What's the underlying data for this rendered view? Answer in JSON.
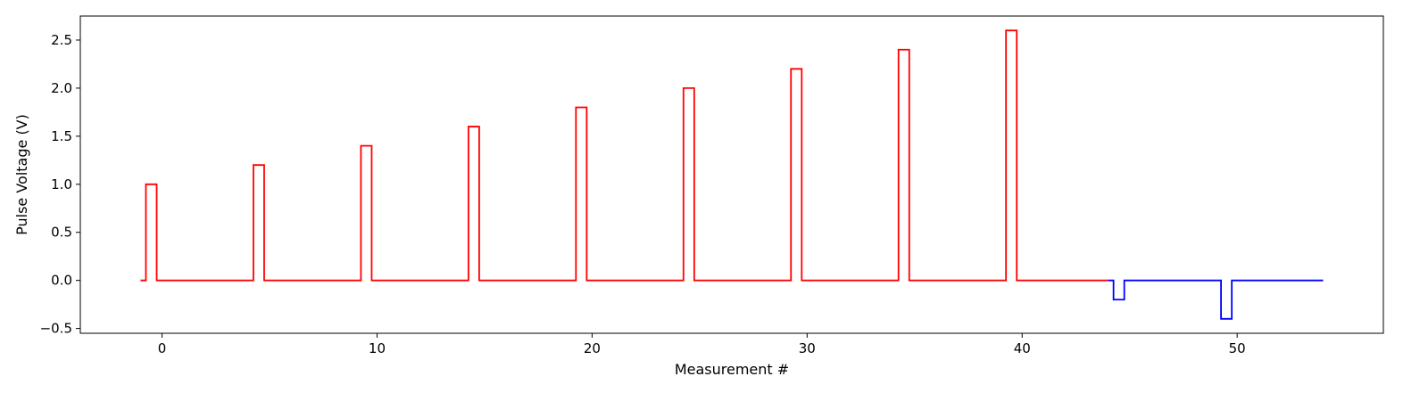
{
  "chart_data": {
    "type": "line",
    "title": "",
    "xlabel": "Measurement #",
    "ylabel": "Pulse Voltage (V)",
    "xlim": [
      -3.8,
      56.8
    ],
    "ylim": [
      -0.55,
      2.75
    ],
    "x_ticks": [
      0,
      10,
      20,
      30,
      40,
      50
    ],
    "y_ticks": [
      -0.5,
      0.0,
      0.5,
      1.0,
      1.5,
      2.0,
      2.5
    ],
    "x_tick_labels": [
      "0",
      "10",
      "20",
      "30",
      "40",
      "50"
    ],
    "y_tick_labels": [
      "−0.5",
      "0.0",
      "0.5",
      "1.0",
      "1.5",
      "2.0",
      "2.5"
    ],
    "grid": false,
    "legend": "none",
    "series": [
      {
        "color": "#ff0000",
        "step": "post",
        "x": [
          -1,
          -0.75,
          -0.25,
          4.25,
          4.75,
          9.25,
          9.75,
          14.25,
          14.75,
          19.25,
          19.75,
          24.25,
          24.75,
          29.25,
          29.75,
          34.25,
          34.75,
          39.25,
          39.75,
          44
        ],
        "y": [
          0,
          1.0,
          0,
          1.2,
          0,
          1.4,
          0,
          1.6,
          0,
          1.8,
          0,
          2.0,
          0,
          2.2,
          0,
          2.4,
          0,
          2.6,
          0,
          0
        ]
      },
      {
        "color": "#0000ff",
        "step": "post",
        "x": [
          44,
          44.25,
          44.75,
          49.25,
          49.75,
          54
        ],
        "y": [
          0,
          -0.2,
          0,
          -0.4,
          0,
          0
        ]
      }
    ]
  }
}
